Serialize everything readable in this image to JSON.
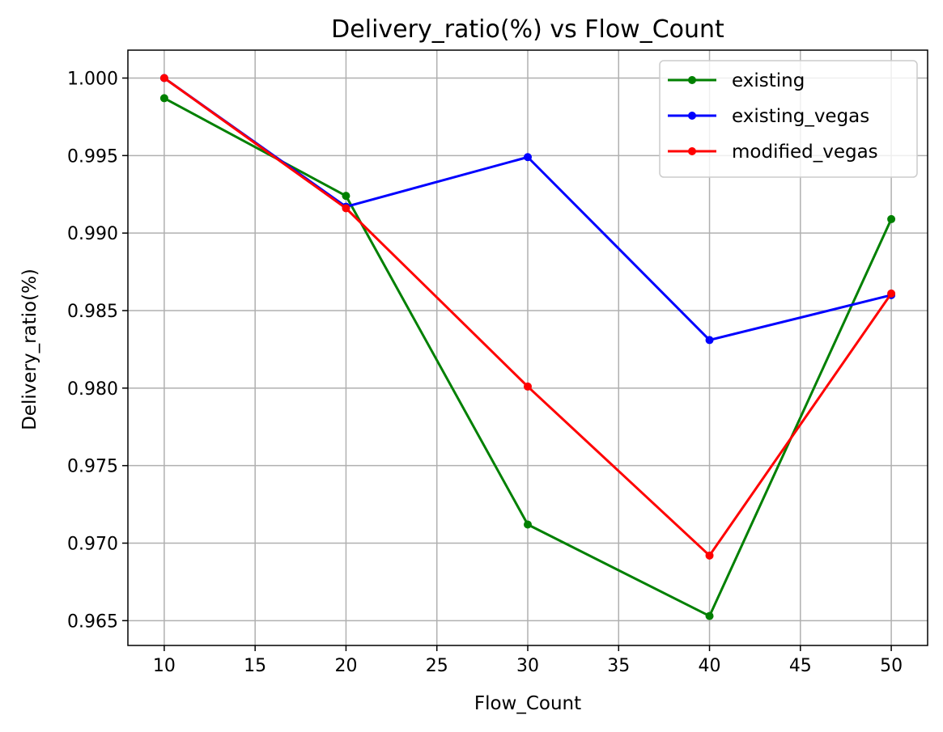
{
  "chart_data": {
    "type": "line",
    "title": "Delivery_ratio(%) vs Flow_Count",
    "xlabel": "Flow_Count",
    "ylabel": "Delivery_ratio(%)",
    "xlim": [
      8,
      52
    ],
    "ylim": [
      0.9634,
      1.0018
    ],
    "xticks": [
      10,
      15,
      20,
      25,
      30,
      35,
      40,
      45,
      50
    ],
    "yticks": [
      0.965,
      0.97,
      0.975,
      0.98,
      0.985,
      0.99,
      0.995,
      1.0
    ],
    "xtick_labels": [
      "10",
      "15",
      "20",
      "25",
      "30",
      "35",
      "40",
      "45",
      "50"
    ],
    "ytick_labels": [
      "0.965",
      "0.970",
      "0.975",
      "0.980",
      "0.985",
      "0.990",
      "0.995",
      "1.000"
    ],
    "grid": true,
    "legend_position": "top-right",
    "x": [
      10,
      20,
      30,
      40,
      50
    ],
    "series": [
      {
        "name": "existing",
        "color": "#008000",
        "values": [
          0.9987,
          0.9924,
          0.9712,
          0.9653,
          0.9909
        ]
      },
      {
        "name": "existing_vegas",
        "color": "#0000ff",
        "values": [
          1.0,
          0.9917,
          0.9949,
          0.9831,
          0.986
        ]
      },
      {
        "name": "modified_vegas",
        "color": "#ff0000",
        "values": [
          1.0,
          0.9916,
          0.9801,
          0.9692,
          0.9861
        ]
      }
    ]
  }
}
